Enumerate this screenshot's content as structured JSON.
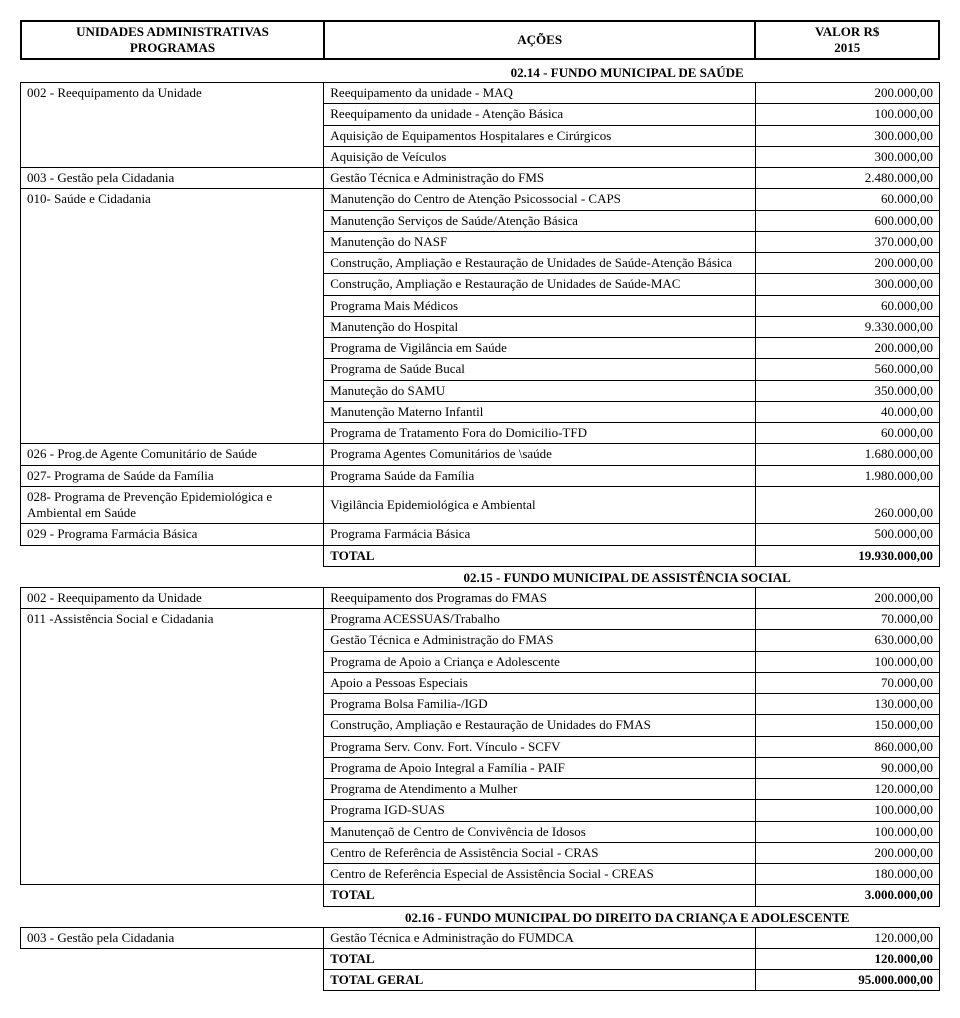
{
  "header": {
    "left_line1": "UNIDADES ADMINISTRATIVAS",
    "left_line2": "PROGRAMAS",
    "mid": "AÇÕES",
    "right_line1": "VALOR R$",
    "right_line2": "2015"
  },
  "section1_title": "02.14 - FUNDO MUNICIPAL DE SAÚDE",
  "s1": {
    "prog002": "002 - Reequipamento da Unidade",
    "r002": [
      {
        "a": "Reequipamento da unidade - MAQ",
        "v": "200.000,00"
      },
      {
        "a": "Reequipamento da unidade - Atenção Básica",
        "v": "100.000,00"
      },
      {
        "a": "Aquisição de Equipamentos Hospitalares e Cirúrgicos",
        "v": "300.000,00"
      },
      {
        "a": "Aquisição de Veículos",
        "v": "300.000,00"
      }
    ],
    "prog003": "003 - Gestão pela Cidadania",
    "r003a": "Gestão Técnica e Administração do FMS",
    "r003v": "2.480.000,00",
    "prog010": "010- Saúde e Cidadania",
    "r010": [
      {
        "a": "Manutenção do Centro de Atenção Psicossocial - CAPS",
        "v": "60.000,00"
      },
      {
        "a": "Manutenção Serviços de Saúde/Atenção Básica",
        "v": "600.000,00"
      },
      {
        "a": "Manutenção do NASF",
        "v": "370.000,00"
      },
      {
        "a": "Construção, Ampliação e Restauração de Unidades de Saúde-Atenção Básica",
        "v": "200.000,00"
      },
      {
        "a": "Construção, Ampliação e Restauração de Unidades de Saúde-MAC",
        "v": "300.000,00"
      },
      {
        "a": "Programa Mais Médicos",
        "v": "60.000,00"
      },
      {
        "a": "Manutenção do Hospital",
        "v": "9.330.000,00"
      },
      {
        "a": "Programa de Vigilância em Saúde",
        "v": "200.000,00"
      },
      {
        "a": "Programa de Saúde Bucal",
        "v": "560.000,00"
      },
      {
        "a": "Manuteção do SAMU",
        "v": "350.000,00"
      },
      {
        "a": "Manutenção Materno Infantil",
        "v": "40.000,00"
      },
      {
        "a": "Programa de Tratamento Fora do Domicilio-TFD",
        "v": "60.000,00"
      }
    ],
    "prog026": "026 - Prog.de Agente Comunitário de Saúde",
    "r026a": "Programa Agentes Comunitários de \\saúde",
    "r026v": "1.680.000,00",
    "prog027": "027- Programa de Saúde da Família",
    "r027a": "Programa Saúde da Família",
    "r027v": "1.980.000,00",
    "prog028": "028- Programa de Prevenção Epidemiológica e Ambiental em Saúde",
    "r028a": "Vigilância Epidemiológica e Ambiental",
    "r028v": "260.000,00",
    "prog029": "029 - Programa Farmácia Básica",
    "r029a": "Programa Farmácia Básica",
    "r029v": "500.000,00",
    "total_label": "TOTAL",
    "total_value": "19.930.000,00"
  },
  "section2_title": "02.15 - FUNDO MUNICIPAL DE ASSISTÊNCIA SOCIAL",
  "s2": {
    "prog002": "002 - Reequipamento da Unidade",
    "r002a": "Reequipamento dos Programas do FMAS",
    "r002v": "200.000,00",
    "prog011": "011 -Assistência Social e Cidadania",
    "r011": [
      {
        "a": "Programa ACESSUAS/Trabalho",
        "v": "70.000,00"
      },
      {
        "a": "Gestão Técnica e Administração do FMAS",
        "v": "630.000,00"
      },
      {
        "a": "Programa de Apoio a Criança e Adolescente",
        "v": "100.000,00"
      },
      {
        "a": "Apoio a Pessoas Especiais",
        "v": "70.000,00"
      },
      {
        "a": "Programa Bolsa Familia-/IGD",
        "v": "130.000,00"
      },
      {
        "a": "Construção, Ampliação e Restauração de Unidades do FMAS",
        "v": "150.000,00"
      },
      {
        "a": "Programa Serv. Conv. Fort. Vínculo - SCFV",
        "v": "860.000,00"
      },
      {
        "a": "Programa de Apoio Integral a Família - PAIF",
        "v": "90.000,00"
      },
      {
        "a": "Programa de Atendimento a Mulher",
        "v": "120.000,00"
      },
      {
        "a": "Programa IGD-SUAS",
        "v": "100.000,00"
      },
      {
        "a": "Manutençaõ de Centro de Convivência de Idosos",
        "v": "100.000,00"
      },
      {
        "a": "Centro de Referência de Assistência Social - CRAS",
        "v": "200.000,00"
      },
      {
        "a": "Centro de Referência Especial de Assistência Social - CREAS",
        "v": "180.000,00"
      }
    ],
    "total_label": "TOTAL",
    "total_value": "3.000.000,00"
  },
  "section3_title": "02.16 - FUNDO MUNICIPAL DO DIREITO DA CRIANÇA E ADOLESCENTE",
  "s3": {
    "prog003": "003 - Gestão pela Cidadania",
    "r003a": "Gestão Técnica e Administração do FUMDCA",
    "r003v": "120.000,00",
    "total_label": "TOTAL",
    "total_value": "120.000,00",
    "grand_label": "TOTAL GERAL",
    "grand_value": "95.000.000,00"
  }
}
